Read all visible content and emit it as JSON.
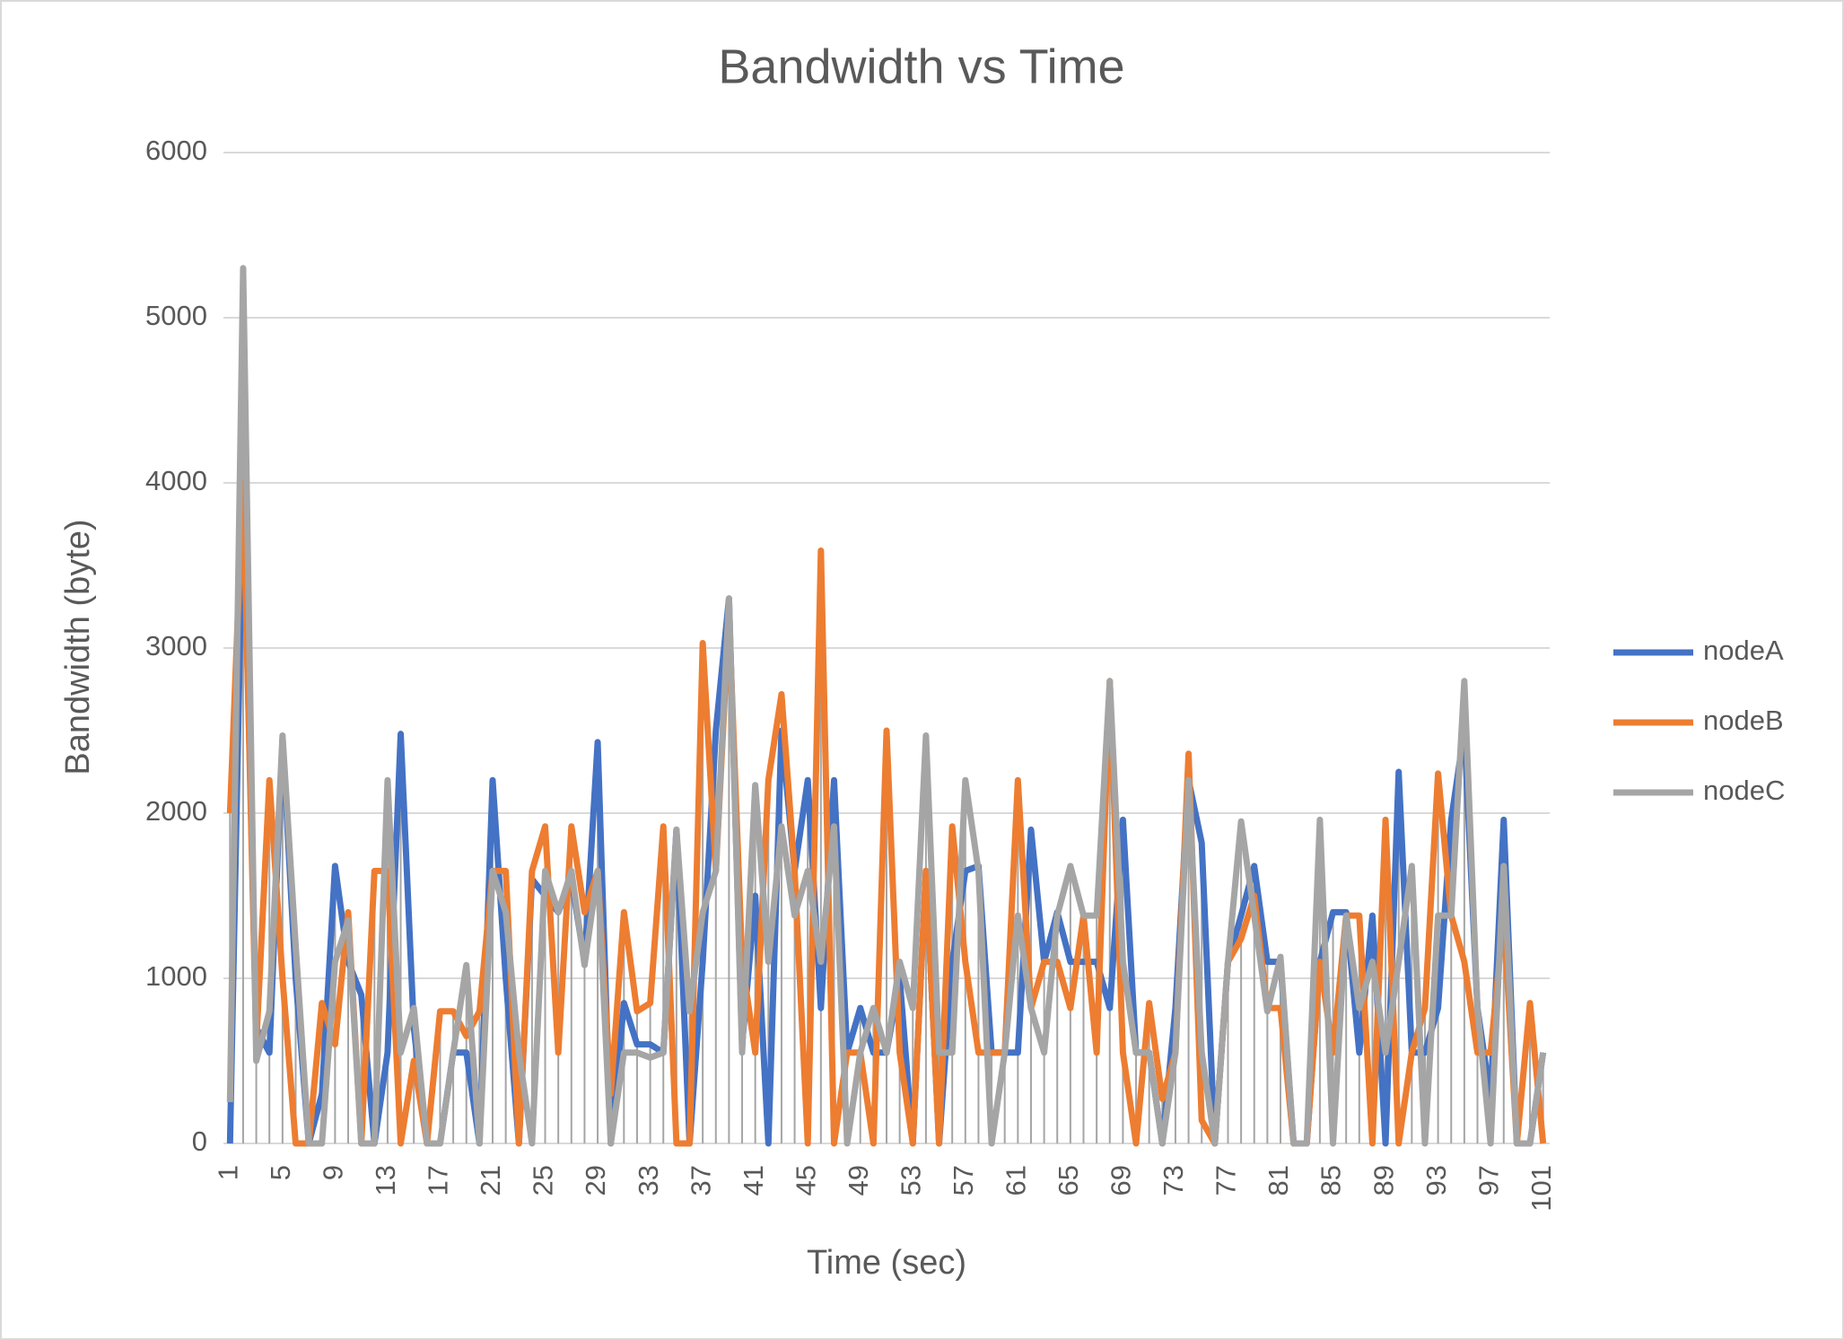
{
  "chart_data": {
    "type": "line",
    "title": "Bandwidth vs Time",
    "x_label": "Time (sec)",
    "y_label": "Bandwidth (byte)",
    "categories": [
      1,
      null,
      null,
      null,
      5,
      null,
      null,
      null,
      9,
      null,
      null,
      null,
      13,
      null,
      null,
      null,
      17,
      null,
      null,
      null,
      21,
      null,
      null,
      null,
      25,
      null,
      null,
      null,
      29,
      null,
      null,
      null,
      33,
      null,
      null,
      null,
      37,
      null,
      null,
      null,
      41,
      null,
      null,
      null,
      45,
      null,
      null,
      null,
      49,
      null,
      null,
      null,
      53,
      null,
      null,
      null,
      57,
      null,
      null,
      null,
      61,
      null,
      null,
      null,
      65,
      null,
      null,
      null,
      69,
      null,
      null,
      null,
      73,
      null,
      null,
      null,
      77,
      null,
      null,
      null,
      81,
      null,
      null,
      null,
      85,
      null,
      null,
      null,
      89,
      null,
      null,
      null,
      93,
      null,
      null,
      null,
      97,
      null,
      null,
      null,
      101
    ],
    "series": [
      {
        "name": "nodeA",
        "color": "#4472c4",
        "values": [
          0,
          4000,
          700,
          550,
          2450,
          1000,
          0,
          300,
          1680,
          1100,
          900,
          0,
          550,
          2480,
          700,
          0,
          0,
          550,
          550,
          0,
          2200,
          1000,
          0,
          1600,
          1500,
          1400,
          1600,
          1100,
          2430,
          0,
          850,
          600,
          600,
          550,
          1900,
          0,
          1100,
          2500,
          3300,
          600,
          1500,
          0,
          2500,
          1650,
          2200,
          820,
          2200,
          550,
          820,
          550,
          550,
          1000,
          0,
          1650,
          0,
          1100,
          1650,
          1680,
          550,
          550,
          550,
          1900,
          1100,
          1400,
          1100,
          1100,
          1100,
          820,
          1960,
          550,
          550,
          0,
          820,
          2200,
          1820,
          0,
          1100,
          1380,
          1680,
          1100,
          1100,
          0,
          0,
          1100,
          1400,
          1400,
          550,
          1380,
          0,
          2250,
          550,
          550,
          820,
          1960,
          2500,
          820,
          270,
          1960,
          0,
          0,
          550
        ]
      },
      {
        "name": "nodeB",
        "color": "#ed7d31",
        "values": [
          2000,
          4000,
          600,
          2200,
          1000,
          0,
          0,
          850,
          600,
          1400,
          0,
          1650,
          1650,
          0,
          500,
          0,
          800,
          800,
          650,
          800,
          1650,
          1650,
          0,
          1650,
          1920,
          550,
          1920,
          1400,
          1650,
          300,
          1400,
          800,
          850,
          1920,
          0,
          0,
          3030,
          1650,
          3200,
          1100,
          550,
          2200,
          2720,
          1650,
          0,
          3590,
          0,
          550,
          550,
          0,
          2500,
          550,
          0,
          1650,
          0,
          1920,
          1100,
          550,
          550,
          550,
          2200,
          820,
          1100,
          1100,
          820,
          1380,
          550,
          2800,
          550,
          0,
          850,
          270,
          550,
          2360,
          140,
          0,
          1100,
          1240,
          1500,
          820,
          820,
          0,
          0,
          1100,
          550,
          1380,
          1380,
          0,
          1960,
          0,
          550,
          820,
          2240,
          1380,
          1100,
          550,
          550,
          1380,
          0,
          850,
          0
        ]
      },
      {
        "name": "nodeC",
        "color": "#a5a5a5",
        "values": [
          250,
          5300,
          500,
          800,
          2470,
          1200,
          0,
          0,
          1100,
          1350,
          0,
          0,
          2200,
          550,
          820,
          0,
          0,
          550,
          1080,
          0,
          1650,
          1400,
          550,
          0,
          1650,
          1400,
          1650,
          1080,
          1650,
          0,
          550,
          550,
          520,
          550,
          1900,
          800,
          1400,
          1650,
          3300,
          550,
          2170,
          1100,
          1920,
          1380,
          1650,
          1100,
          1920,
          0,
          550,
          820,
          550,
          1100,
          820,
          2470,
          550,
          550,
          2200,
          1650,
          0,
          550,
          1380,
          820,
          550,
          1380,
          1680,
          1380,
          1380,
          2800,
          1100,
          550,
          550,
          0,
          550,
          2200,
          550,
          0,
          1100,
          1950,
          1380,
          800,
          1130,
          0,
          0,
          1960,
          0,
          1380,
          820,
          1100,
          550,
          1100,
          1680,
          0,
          1380,
          1380,
          2800,
          820,
          0,
          1680,
          0,
          0,
          550
        ]
      }
    ],
    "ylim": [
      0,
      6000
    ],
    "yticks": [
      0,
      1000,
      2000,
      3000,
      4000,
      5000,
      6000
    ],
    "grid": true,
    "drop_lines": true,
    "legend": "right"
  }
}
